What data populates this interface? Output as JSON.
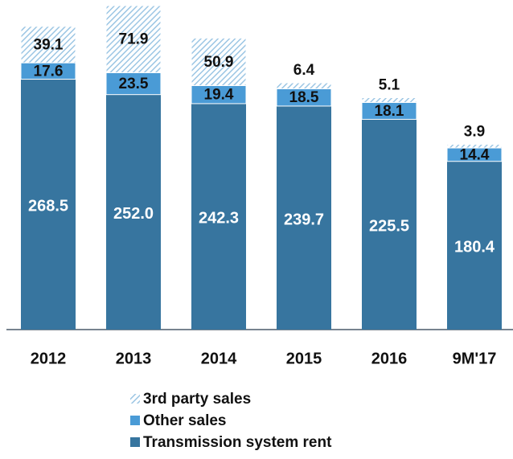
{
  "chart_data": {
    "type": "stacked-bar",
    "categories": [
      "2012",
      "2013",
      "2014",
      "2015",
      "2016",
      "9M'17"
    ],
    "series": [
      {
        "name": "Transmission system rent",
        "color": "#37759f",
        "values": [
          268.5,
          252.0,
          242.3,
          239.7,
          225.5,
          180.4
        ],
        "value_labels": [
          "268.5",
          "252.0",
          "242.3",
          "239.7",
          "225.5",
          "180.4"
        ]
      },
      {
        "name": "Other sales",
        "color": "#4a9bd6",
        "values": [
          17.6,
          23.5,
          19.4,
          18.5,
          18.1,
          14.4
        ],
        "value_labels": [
          "17.6",
          "23.5",
          "19.4",
          "18.5",
          "18.1",
          "14.4"
        ]
      },
      {
        "name": "3rd party sales",
        "color": "#9cc6e4",
        "values": [
          39.1,
          71.9,
          50.9,
          6.4,
          5.1,
          3.9
        ],
        "value_labels": [
          "39.1",
          "71.9",
          "50.9",
          "6.4",
          "5.1",
          "3.9"
        ]
      }
    ]
  }
}
